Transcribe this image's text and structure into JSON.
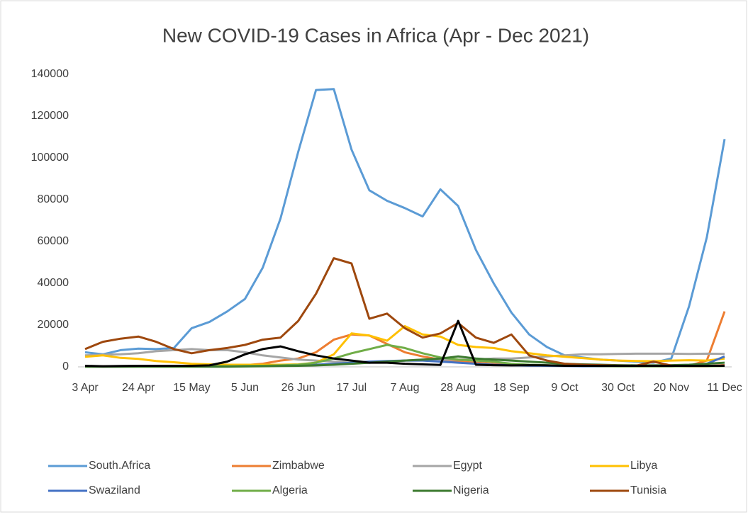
{
  "chart_data": {
    "type": "line",
    "title": "New COVID-19 Cases in Africa (Apr - Dec 2021)",
    "categories": [
      "3 Apr",
      null,
      null,
      "24 Apr",
      null,
      null,
      "15 May",
      null,
      null,
      "5 Jun",
      null,
      null,
      "26 Jun",
      null,
      null,
      "17 Jul",
      null,
      null,
      "7 Aug",
      null,
      null,
      "28 Aug",
      null,
      null,
      "18 Sep",
      null,
      null,
      "9 Oct",
      null,
      null,
      "30 Oct",
      null,
      null,
      "20 Nov",
      null,
      null,
      "11 Dec"
    ],
    "ylim": [
      0,
      140000
    ],
    "yticks": [
      0,
      20000,
      40000,
      60000,
      80000,
      100000,
      120000,
      140000
    ],
    "grid": false,
    "legend": "bottom",
    "series": [
      {
        "name": "South.Africa",
        "color": "#5b9bd5",
        "values": [
          7000,
          6000,
          8000,
          8700,
          8500,
          9000,
          18500,
          21500,
          26500,
          32500,
          47500,
          71000,
          103000,
          132500,
          133000,
          104000,
          84500,
          79500,
          76000,
          72000,
          85000,
          77000,
          56000,
          40000,
          26000,
          15500,
          9500,
          5500,
          4500,
          3500,
          3000,
          2500,
          2000,
          4000,
          29000,
          62000,
          109000
        ]
      },
      {
        "name": "Zimbabwe",
        "color": "#ed7d31",
        "values": [
          300,
          300,
          300,
          300,
          300,
          300,
          300,
          400,
          500,
          800,
          1500,
          3000,
          4000,
          7000,
          13000,
          15500,
          15000,
          11000,
          7000,
          5000,
          3500,
          2500,
          2000,
          1500,
          1000,
          800,
          600,
          500,
          400,
          300,
          300,
          300,
          300,
          300,
          500,
          3000,
          26500
        ]
      },
      {
        "name": "Egypt",
        "color": "#a5a5a5",
        "values": [
          5500,
          5800,
          6000,
          6500,
          7500,
          8000,
          8500,
          8000,
          8000,
          7000,
          5500,
          4500,
          3500,
          3000,
          2500,
          2000,
          2000,
          2500,
          3000,
          3500,
          3500,
          3500,
          3500,
          4000,
          4000,
          4500,
          5000,
          5500,
          6000,
          6000,
          6200,
          6300,
          6300,
          6300,
          6200,
          6300,
          6200
        ]
      },
      {
        "name": "Libya",
        "color": "#ffc000",
        "values": [
          4800,
          5500,
          4300,
          3800,
          2800,
          2200,
          1500,
          1200,
          1000,
          1000,
          1000,
          1000,
          1200,
          2000,
          6000,
          16000,
          15000,
          12500,
          19500,
          15500,
          14500,
          10500,
          9500,
          9000,
          7500,
          6500,
          5500,
          4800,
          4200,
          3500,
          3000,
          2800,
          2700,
          3000,
          3200,
          3000,
          4000
        ]
      },
      {
        "name": "Swaziland",
        "color": "#4472c4",
        "values": [
          200,
          200,
          200,
          200,
          200,
          200,
          200,
          200,
          300,
          300,
          400,
          500,
          800,
          1000,
          1500,
          2000,
          2500,
          2800,
          3000,
          3000,
          2500,
          2000,
          1500,
          1000,
          800,
          600,
          500,
          400,
          300,
          300,
          300,
          300,
          300,
          300,
          500,
          1500,
          5000
        ]
      },
      {
        "name": "Algeria",
        "color": "#70ad47",
        "values": [
          150,
          150,
          150,
          200,
          200,
          200,
          200,
          300,
          300,
          400,
          500,
          700,
          1000,
          2000,
          4000,
          6500,
          8500,
          10500,
          9000,
          6500,
          4500,
          3500,
          3000,
          2500,
          1500,
          1000,
          800,
          600,
          500,
          400,
          300,
          300,
          300,
          300,
          300,
          300,
          400
        ]
      },
      {
        "name": "Nigeria",
        "color": "#3c7a2f",
        "values": [
          100,
          100,
          100,
          100,
          100,
          100,
          100,
          100,
          100,
          200,
          300,
          400,
          500,
          700,
          1000,
          1500,
          2000,
          2500,
          3000,
          3500,
          4000,
          5000,
          4000,
          3500,
          3000,
          2500,
          2000,
          1500,
          1200,
          1000,
          800,
          700,
          700,
          800,
          1000,
          1500,
          2000
        ]
      },
      {
        "name": "Tunisia",
        "color": "#9e480e",
        "values": [
          8500,
          12000,
          13500,
          14500,
          12000,
          8500,
          6500,
          8000,
          9000,
          10500,
          13000,
          14000,
          22000,
          35000,
          52000,
          49500,
          23000,
          25500,
          18500,
          14000,
          16000,
          21000,
          14000,
          11500,
          15500,
          5500,
          3000,
          1500,
          1000,
          800,
          600,
          500,
          2500,
          600,
          400,
          400,
          800
        ]
      },
      {
        "color": "#000000",
        "values": [
          500,
          300,
          400,
          500,
          500,
          500,
          500,
          700,
          2500,
          6000,
          8500,
          9800,
          7500,
          5500,
          4000,
          3000,
          2000,
          2000,
          1500,
          1200,
          900,
          22000,
          1000,
          800,
          700,
          800,
          700,
          500,
          500,
          500,
          500,
          500,
          500,
          500,
          500,
          500,
          500
        ]
      }
    ]
  }
}
